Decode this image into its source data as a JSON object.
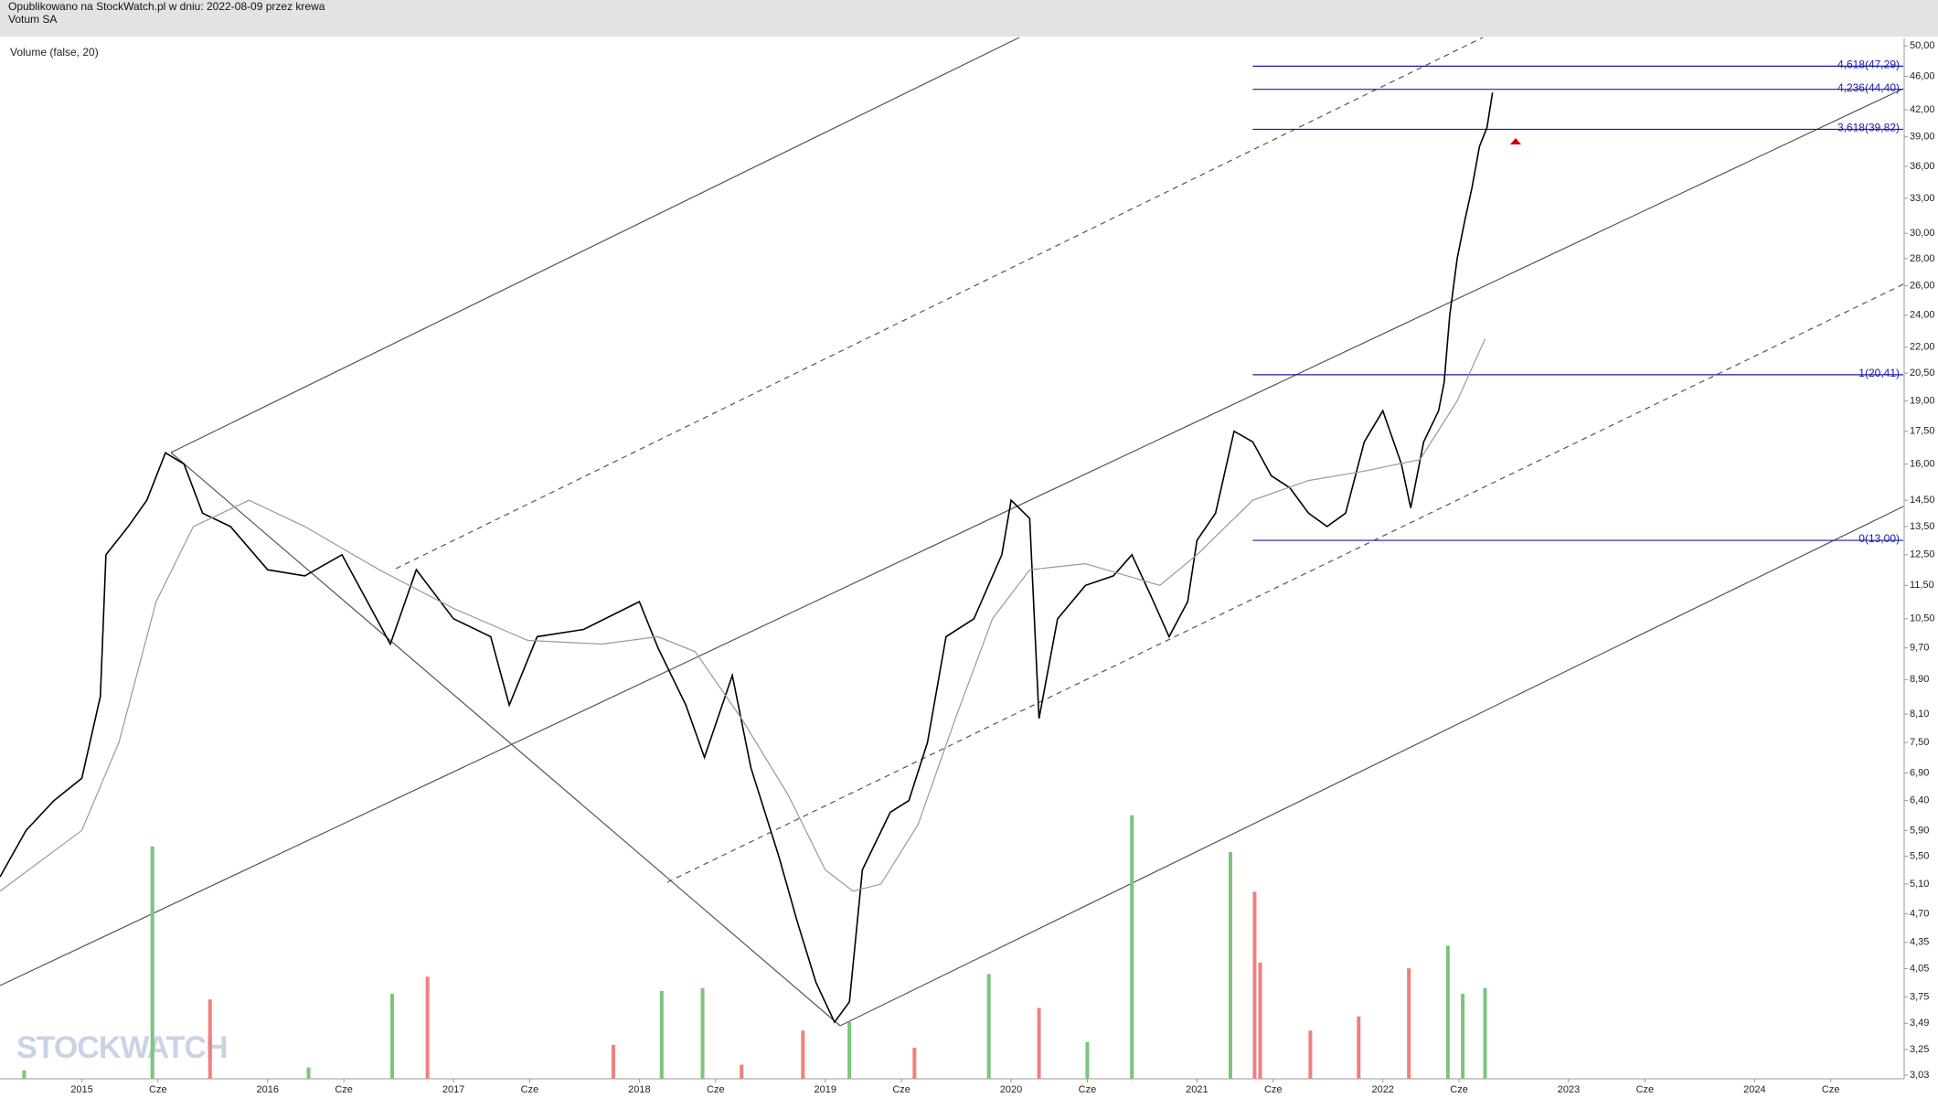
{
  "header": {
    "line1": "Opublikowano na StockWatch.pl w dniu: 2022-08-09 przez krewa",
    "line2": "Votum SA"
  },
  "chart_data": {
    "type": "line",
    "subtitle": "Volume (false, 20)",
    "watermark": "STOCKWATCH",
    "log_scale": true,
    "xlim": [
      2014.56,
      2024.8
    ],
    "ylim": [
      3.03,
      50
    ],
    "xticks": [
      2015,
      {
        "value": 2015.41,
        "label": "Cze"
      },
      2016,
      {
        "value": 2016.41,
        "label": "Cze"
      },
      2017,
      {
        "value": 2017.41,
        "label": "Cze"
      },
      2018,
      {
        "value": 2018.41,
        "label": "Cze"
      },
      2019,
      {
        "value": 2019.41,
        "label": "Cze"
      },
      2020,
      {
        "value": 2020.41,
        "label": "Cze"
      },
      2021,
      {
        "value": 2021.41,
        "label": "Cze"
      },
      2022,
      {
        "value": 2022.41,
        "label": "Cze"
      },
      2023,
      {
        "value": 2023.41,
        "label": "Cze"
      },
      2024,
      {
        "value": 2024.41,
        "label": "Cze"
      }
    ],
    "yticks": [
      {
        "value": 50,
        "label": "50,00"
      },
      {
        "value": 46,
        "label": "46,00"
      },
      {
        "value": 42,
        "label": "42,00"
      },
      {
        "value": 39,
        "label": "39,00"
      },
      {
        "value": 36,
        "label": "36,00"
      },
      {
        "value": 33,
        "label": "33,00"
      },
      {
        "value": 30,
        "label": "30,00"
      },
      {
        "value": 28,
        "label": "28,00"
      },
      {
        "value": 26,
        "label": "26,00"
      },
      {
        "value": 24,
        "label": "24,00"
      },
      {
        "value": 22,
        "label": "22,00"
      },
      {
        "value": 20.5,
        "label": "20,50"
      },
      {
        "value": 19,
        "label": "19,00"
      },
      {
        "value": 17.5,
        "label": "17,50"
      },
      {
        "value": 16,
        "label": "16,00"
      },
      {
        "value": 14.5,
        "label": "14,50"
      },
      {
        "value": 13.5,
        "label": "13,50"
      },
      {
        "value": 12.5,
        "label": "12,50"
      },
      {
        "value": 11.5,
        "label": "11,50"
      },
      {
        "value": 10.5,
        "label": "10,50"
      },
      {
        "value": 9.7,
        "label": "9,70"
      },
      {
        "value": 8.9,
        "label": "8,90"
      },
      {
        "value": 8.1,
        "label": "8,10"
      },
      {
        "value": 7.5,
        "label": "7,50"
      },
      {
        "value": 6.9,
        "label": "6,90"
      },
      {
        "value": 6.4,
        "label": "6,40"
      },
      {
        "value": 5.9,
        "label": "5,90"
      },
      {
        "value": 5.5,
        "label": "5,50"
      },
      {
        "value": 5.1,
        "label": "5,10"
      },
      {
        "value": 4.7,
        "label": "4,70"
      },
      {
        "value": 4.35,
        "label": "4,35"
      },
      {
        "value": 4.05,
        "label": "4,05"
      },
      {
        "value": 3.75,
        "label": "3,75"
      },
      {
        "value": 3.49,
        "label": "3,49"
      },
      {
        "value": 3.25,
        "label": "3,25"
      },
      {
        "value": 3.03,
        "label": "3,03"
      }
    ],
    "series": [
      {
        "color": "#000000",
        "x": [
          2014.56,
          2014.7,
          2014.85,
          2015.0,
          2015.1,
          2015.13,
          2015.25,
          2015.35,
          2015.45,
          2015.55,
          2015.65,
          2015.8,
          2016.0,
          2016.2,
          2016.4,
          2016.66,
          2016.8,
          2017.0,
          2017.2,
          2017.3,
          2017.45,
          2017.7,
          2018.0,
          2018.1,
          2018.25,
          2018.35,
          2018.5,
          2018.6,
          2018.75,
          2018.85,
          2018.95,
          2019.05,
          2019.13,
          2019.2,
          2019.35,
          2019.45,
          2019.55,
          2019.65,
          2019.8,
          2019.95,
          2020.0,
          2020.1,
          2020.15,
          2020.25,
          2020.4,
          2020.55,
          2020.65,
          2020.75,
          2020.85,
          2020.95,
          2021.0,
          2021.1,
          2021.2,
          2021.3,
          2021.4,
          2021.5,
          2021.6,
          2021.7,
          2021.8,
          2021.9,
          2022.0,
          2022.1,
          2022.15,
          2022.22,
          2022.3,
          2022.33,
          2022.36,
          2022.4,
          2022.44,
          2022.48,
          2022.52,
          2022.56,
          2022.59
        ],
        "values": [
          5.2,
          5.9,
          6.4,
          6.8,
          8.5,
          12.5,
          13.5,
          14.5,
          16.5,
          16.0,
          14.0,
          13.5,
          12.0,
          11.8,
          12.5,
          9.8,
          12.0,
          10.5,
          10.0,
          8.3,
          10.0,
          10.2,
          11.0,
          9.7,
          8.3,
          7.2,
          9.0,
          7.0,
          5.5,
          4.6,
          3.9,
          3.5,
          3.7,
          5.3,
          6.2,
          6.4,
          7.5,
          10.0,
          10.5,
          12.5,
          14.5,
          13.8,
          8.0,
          10.5,
          11.5,
          11.8,
          12.5,
          11.2,
          10.0,
          11.0,
          13.0,
          14.0,
          17.5,
          17.0,
          15.5,
          15.0,
          14.0,
          13.5,
          14.0,
          17.0,
          18.5,
          16.0,
          14.2,
          17.0,
          18.5,
          20.0,
          24.0,
          28.0,
          31.0,
          34.0,
          38.0,
          40.0,
          44.0
        ]
      },
      {
        "color": "#999999",
        "x": [
          2014.56,
          2015.0,
          2015.2,
          2015.4,
          2015.6,
          2015.9,
          2016.2,
          2016.6,
          2017.0,
          2017.4,
          2017.8,
          2018.1,
          2018.3,
          2018.55,
          2018.8,
          2019.0,
          2019.15,
          2019.3,
          2019.5,
          2019.7,
          2019.9,
          2020.1,
          2020.4,
          2020.8,
          2021.0,
          2021.3,
          2021.6,
          2021.9,
          2022.2,
          2022.4,
          2022.55
        ],
        "values": [
          5.0,
          5.9,
          7.5,
          11.0,
          13.5,
          14.5,
          13.5,
          12.0,
          10.8,
          9.9,
          9.8,
          10.0,
          9.6,
          8.0,
          6.5,
          5.3,
          5.0,
          5.1,
          6.0,
          8.0,
          10.5,
          12.0,
          12.2,
          11.5,
          12.5,
          14.5,
          15.3,
          15.7,
          16.2,
          19.0,
          22.5
        ]
      }
    ],
    "volume": {
      "ylim": [
        0,
        100
      ],
      "x": [
        2014.69,
        2015.38,
        2015.69,
        2016.22,
        2016.67,
        2016.86,
        2017.86,
        2018.12,
        2018.34,
        2018.55,
        2018.88,
        2019.13,
        2019.48,
        2019.88,
        2020.15,
        2020.41,
        2020.65,
        2021.18,
        2021.31,
        2021.34,
        2021.61,
        2021.87,
        2022.14,
        2022.35,
        2022.43,
        2022.55
      ],
      "values": [
        3,
        82,
        28,
        4,
        30,
        36,
        12,
        31,
        32,
        5,
        17,
        20,
        11,
        37,
        25,
        13,
        93,
        80,
        66,
        41,
        17,
        22,
        39,
        47,
        30,
        32
      ],
      "colors": [
        "#7cc47c",
        "#7cc47c",
        "#f08080",
        "#7cc47c",
        "#7cc47c",
        "#f08080",
        "#f08080",
        "#7cc47c",
        "#7cc47c",
        "#f08080",
        "#f08080",
        "#7cc47c",
        "#f08080",
        "#7cc47c",
        "#f08080",
        "#7cc47c",
        "#7cc47c",
        "#7cc47c",
        "#f08080",
        "#f08080",
        "#f08080",
        "#f08080",
        "#f08080",
        "#7cc47c",
        "#7cc47c",
        "#7cc47c"
      ]
    },
    "fib_start": 2021.3,
    "fib_levels": [
      {
        "value": 47.29,
        "label": "4,618(47,29)"
      },
      {
        "value": 44.4,
        "label": "4,236(44,40)"
      },
      {
        "value": 39.82,
        "label": "3,618(39,82)"
      },
      {
        "value": 20.41,
        "label": "1(20,41)"
      },
      {
        "value": 13.0,
        "label": "0(13,00)"
      }
    ],
    "fib_color": "#1a1aa6"
  }
}
